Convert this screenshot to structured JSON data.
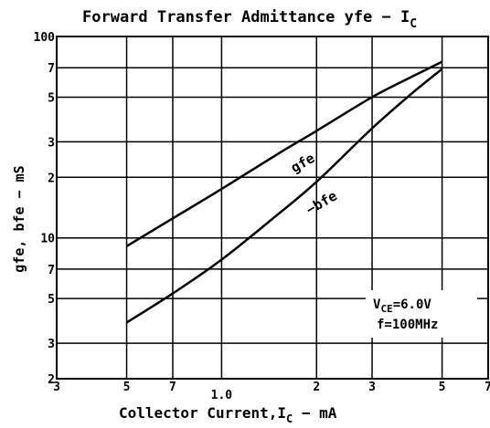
{
  "chart_data": {
    "type": "line",
    "title": [
      "Forward Transfer Admittance yfe − I",
      "C"
    ],
    "xlabel": [
      "Collector Current,I",
      "C",
      " − mA"
    ],
    "ylabel": "gfe, bfe − mS",
    "annotation": [
      [
        "V",
        "CE",
        "=6.0V"
      ],
      "f=100MHz"
    ],
    "log_x": true,
    "log_y": true,
    "grid": true,
    "xlim": [
      0.3,
      7
    ],
    "ylim": [
      2,
      100
    ],
    "xticks": [
      {
        "value": 0.3,
        "label": "3"
      },
      {
        "value": 0.5,
        "label": "5"
      },
      {
        "value": 0.7,
        "label": "7"
      },
      {
        "value": 1,
        "label": "1.0"
      },
      2,
      3,
      5,
      7
    ],
    "yticks": [
      2,
      3,
      5,
      7,
      10,
      {
        "value": 20,
        "label": "2"
      },
      {
        "value": 30,
        "label": "3"
      },
      {
        "value": 50,
        "label": "5"
      },
      {
        "value": 70,
        "label": "7"
      },
      100
    ],
    "series": [
      {
        "name": "gfe",
        "color": "#000000",
        "x": [
          0.5,
          0.7,
          1.0,
          1.5,
          2,
          3,
          4,
          5
        ],
        "values": [
          9.1,
          12.5,
          17.5,
          26,
          34,
          50,
          63,
          75
        ]
      },
      {
        "name": "−bfe",
        "color": "#000000",
        "x": [
          0.5,
          0.7,
          1.0,
          1.5,
          2,
          3,
          4,
          5
        ],
        "values": [
          3.8,
          5.3,
          7.8,
          13,
          19,
          35,
          52,
          69
        ]
      }
    ]
  }
}
